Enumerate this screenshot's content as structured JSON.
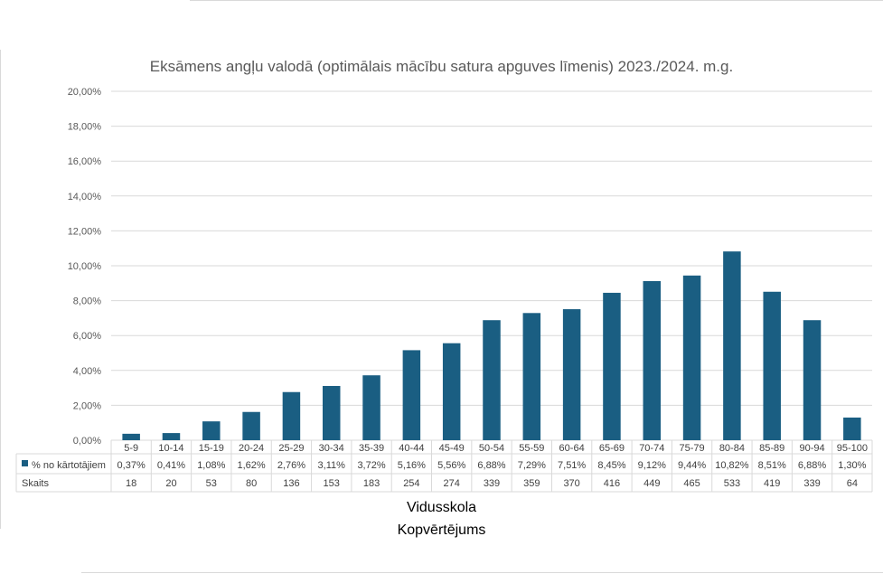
{
  "chart_data": {
    "type": "bar",
    "title": "Eksāmens angļu valodā (optimālais mācību satura apguves līmenis) 2023./2024. m.g.",
    "categories": [
      "5-9",
      "10-14",
      "15-19",
      "20-24",
      "25-29",
      "30-34",
      "35-39",
      "40-44",
      "45-49",
      "50-54",
      "55-59",
      "60-64",
      "65-69",
      "70-74",
      "75-79",
      "80-84",
      "85-89",
      "90-94",
      "95-100"
    ],
    "series": [
      {
        "name": "% no kārtotājiem",
        "values": [
          0.37,
          0.41,
          1.08,
          1.62,
          2.76,
          3.11,
          3.72,
          5.16,
          5.56,
          6.88,
          7.29,
          7.51,
          8.45,
          9.12,
          9.44,
          10.82,
          8.51,
          6.88,
          1.3
        ],
        "labels": [
          "0,37%",
          "0,41%",
          "1,08%",
          "1,62%",
          "2,76%",
          "3,11%",
          "3,72%",
          "5,16%",
          "5,56%",
          "6,88%",
          "7,29%",
          "7,51%",
          "8,45%",
          "9,12%",
          "9,44%",
          "10,82%",
          "8,51%",
          "6,88%",
          "1,30%"
        ],
        "color": "#1a5e82"
      }
    ],
    "table_rows": [
      {
        "name": "Skaits",
        "values": [
          "18",
          "20",
          "53",
          "80",
          "136",
          "153",
          "183",
          "254",
          "274",
          "339",
          "359",
          "370",
          "416",
          "449",
          "465",
          "533",
          "419",
          "339",
          "64"
        ]
      }
    ],
    "yticks": [
      "0,00%",
      "2,00%",
      "4,00%",
      "6,00%",
      "8,00%",
      "10,00%",
      "12,00%",
      "14,00%",
      "16,00%",
      "18,00%",
      "20,00%"
    ],
    "ylim": [
      0,
      20
    ],
    "grid": true,
    "legend": "data-table",
    "xlabel_lines": [
      "Vidusskola",
      "Kopvērtējums"
    ],
    "colors": {
      "bar": "#1a5e82",
      "grid": "#d9d9d9",
      "text": "#595959"
    }
  }
}
